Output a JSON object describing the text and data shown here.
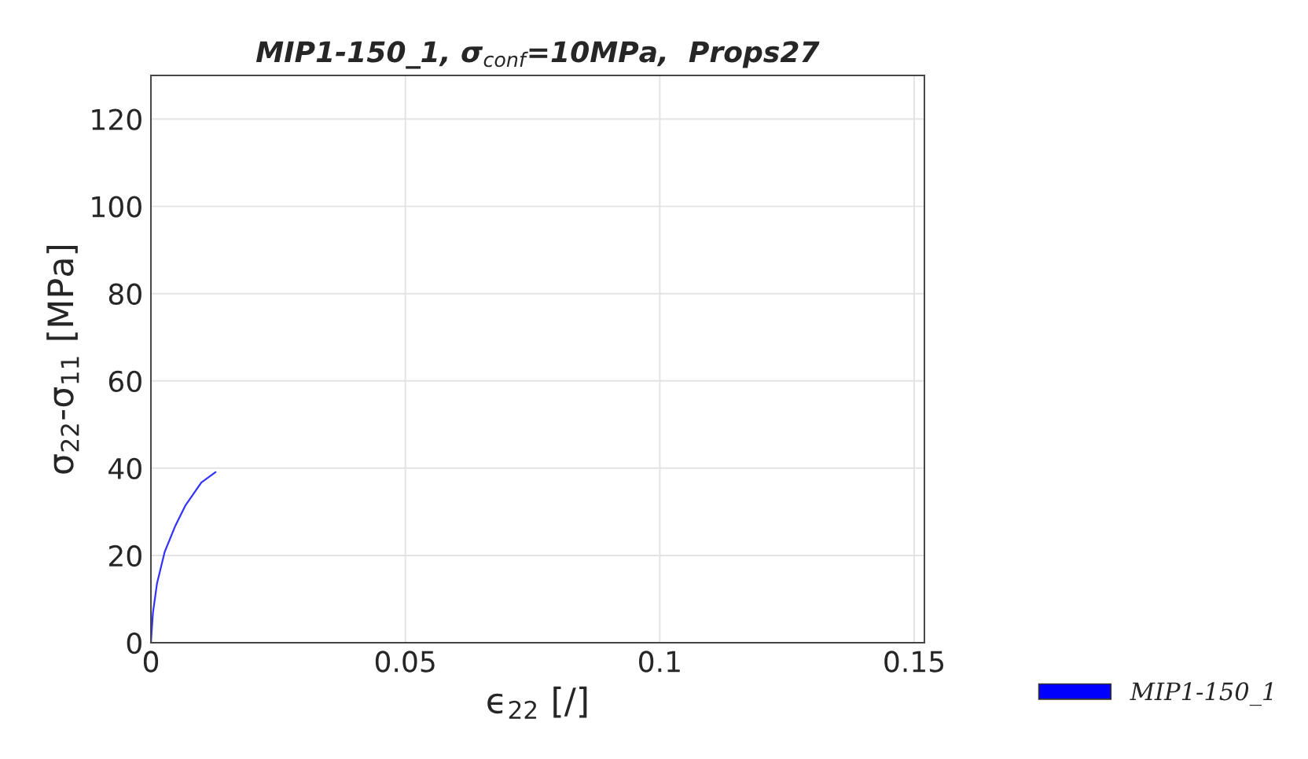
{
  "chart_data": {
    "type": "line",
    "title": "MIP1-150_1, σ$_{conf}$=10MPa,  Props27",
    "xlabel": "ϵ$_{22}$ [/]",
    "ylabel": "σ$_{22}$-σ$_{11}$ [MPa]",
    "xlim": [
      0,
      0.152
    ],
    "ylim": [
      0,
      130
    ],
    "xticks": [
      0,
      0.05,
      0.1,
      0.15
    ],
    "yticks": [
      0,
      20,
      40,
      60,
      80,
      100,
      120
    ],
    "grid": true,
    "legend": "bottom right",
    "series": [
      {
        "name": "MIP1-150_1",
        "color": "#0000ff",
        "x": [
          0,
          0.0004,
          0.0012,
          0.0027,
          0.0048,
          0.0068,
          0.0099,
          0.0127
        ],
        "values": [
          0,
          6.9,
          13.6,
          20.8,
          26.8,
          31.5,
          36.7,
          39.1
        ]
      }
    ]
  }
}
